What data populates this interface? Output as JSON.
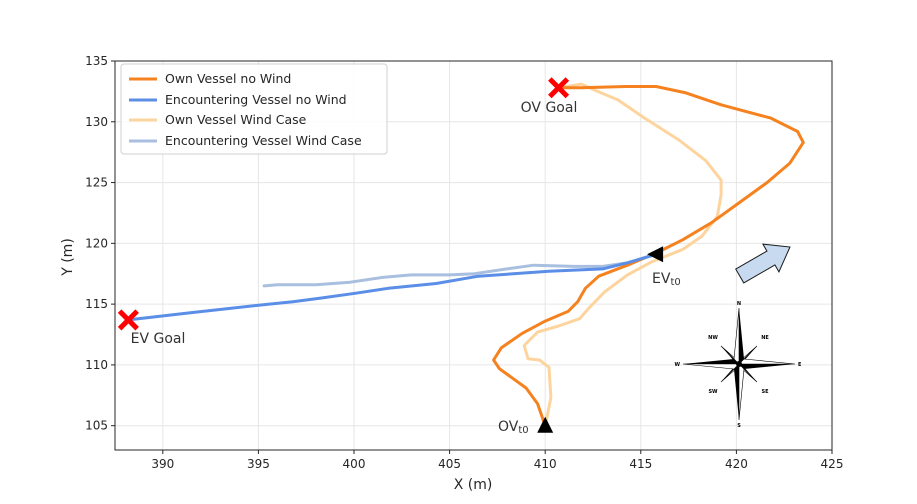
{
  "chart_data": {
    "type": "line",
    "xlabel": "X (m)",
    "ylabel": "Y (m)",
    "xlim": [
      387.5,
      425
    ],
    "ylim": [
      103,
      135
    ],
    "xticks": [
      390,
      395,
      400,
      405,
      410,
      415,
      420,
      425
    ],
    "yticks": [
      105,
      110,
      115,
      120,
      125,
      130,
      135
    ],
    "grid": true,
    "legend_position": "upper-left",
    "series": [
      {
        "name": "Own Vessel no Wind",
        "color": "#f5821f",
        "points": [
          [
            410,
            105
          ],
          [
            409.6,
            106.8
          ],
          [
            409.0,
            108.1
          ],
          [
            408.3,
            108.9
          ],
          [
            407.6,
            109.7
          ],
          [
            407.3,
            110.4
          ],
          [
            407.7,
            111.4
          ],
          [
            408.8,
            112.6
          ],
          [
            410.0,
            113.6
          ],
          [
            411.2,
            114.4
          ],
          [
            411.7,
            115.2
          ],
          [
            412.1,
            116.3
          ],
          [
            412.8,
            117.3
          ],
          [
            414.3,
            118.2
          ],
          [
            415.8,
            119.2
          ],
          [
            417.2,
            120.3
          ],
          [
            418.7,
            121.7
          ],
          [
            420.2,
            123.4
          ],
          [
            421.6,
            125.0
          ],
          [
            422.8,
            126.6
          ],
          [
            423.5,
            128.3
          ],
          [
            423.2,
            129.2
          ],
          [
            421.8,
            130.3
          ],
          [
            419.2,
            131.4
          ],
          [
            417.3,
            132.4
          ],
          [
            415.8,
            132.9
          ],
          [
            414.2,
            132.9
          ],
          [
            411.9,
            132.8
          ],
          [
            410.7,
            132.8
          ]
        ]
      },
      {
        "name": "Encountering Vessel no Wind",
        "color": "#5b8ee6",
        "points": [
          [
            415.8,
            119.1
          ],
          [
            414.3,
            118.4
          ],
          [
            413.0,
            117.9
          ],
          [
            410.2,
            117.7
          ],
          [
            406.5,
            117.3
          ],
          [
            404.3,
            116.7
          ],
          [
            401.8,
            116.3
          ],
          [
            400.1,
            115.9
          ],
          [
            398.3,
            115.5
          ],
          [
            396.8,
            115.2
          ],
          [
            395.0,
            114.9
          ],
          [
            391.5,
            114.3
          ],
          [
            388.2,
            113.7
          ]
        ]
      },
      {
        "name": "Own Vessel Wind Case",
        "color": "#fdd49e",
        "points": [
          [
            410,
            105
          ],
          [
            410.3,
            107.3
          ],
          [
            410.2,
            109.8
          ],
          [
            409.7,
            110.4
          ],
          [
            409.1,
            110.5
          ],
          [
            408.9,
            111.6
          ],
          [
            409.6,
            112.7
          ],
          [
            410.7,
            113.2
          ],
          [
            411.8,
            113.8
          ],
          [
            412.3,
            114.7
          ],
          [
            413.1,
            116.0
          ],
          [
            414.3,
            117.4
          ],
          [
            415.6,
            118.5
          ],
          [
            417.2,
            119.5
          ],
          [
            418.2,
            120.6
          ],
          [
            419.0,
            122.2
          ],
          [
            419.2,
            124.0
          ],
          [
            419.2,
            125.2
          ],
          [
            418.4,
            126.8
          ],
          [
            417.0,
            128.5
          ],
          [
            415.2,
            130.3
          ],
          [
            413.8,
            131.8
          ],
          [
            412.6,
            132.6
          ],
          [
            411.9,
            133.1
          ],
          [
            410.7,
            132.8
          ]
        ]
      },
      {
        "name": "Encountering Vessel Wind Case",
        "color": "#a8bfdf",
        "points": [
          [
            415.8,
            119.1
          ],
          [
            414.3,
            118.4
          ],
          [
            413.0,
            118.1
          ],
          [
            411.5,
            118.1
          ],
          [
            409.4,
            118.2
          ],
          [
            408.0,
            117.9
          ],
          [
            406.3,
            117.5
          ],
          [
            405.0,
            117.4
          ],
          [
            403.0,
            117.4
          ],
          [
            401.5,
            117.2
          ],
          [
            399.8,
            116.8
          ],
          [
            398.0,
            116.6
          ],
          [
            396.0,
            116.6
          ],
          [
            395.3,
            116.5
          ]
        ]
      }
    ],
    "annotations": [
      {
        "text": "OV Goal",
        "x": 410.7,
        "y": 132.8,
        "marker": "red-x"
      },
      {
        "text": "EV Goal",
        "x": 388.2,
        "y": 113.7,
        "marker": "red-x"
      },
      {
        "text": "OVt0",
        "x": 410.0,
        "y": 105.0,
        "marker": "black-triangle-up"
      },
      {
        "text": "EVt0",
        "x": 415.8,
        "y": 119.1,
        "marker": "black-triangle-left"
      }
    ]
  },
  "labels": {
    "ov_goal": "OV Goal",
    "ev_goal": "EV Goal",
    "ov_t0_main": "OV",
    "ov_t0_sub": "t0",
    "ev_t0_main": "EV",
    "ev_t0_sub": "t0"
  },
  "compass": {
    "icon": "compass-rose-icon",
    "labels": {
      "n": "N",
      "s": "S",
      "e": "E",
      "w": "W",
      "ne": "NE",
      "nw": "NW",
      "se": "SE",
      "sw": "SW"
    }
  },
  "wind_arrow": {
    "icon": "wind-direction-arrow-icon",
    "fill": "#c8daf0",
    "stroke": "#1a1a1a"
  }
}
